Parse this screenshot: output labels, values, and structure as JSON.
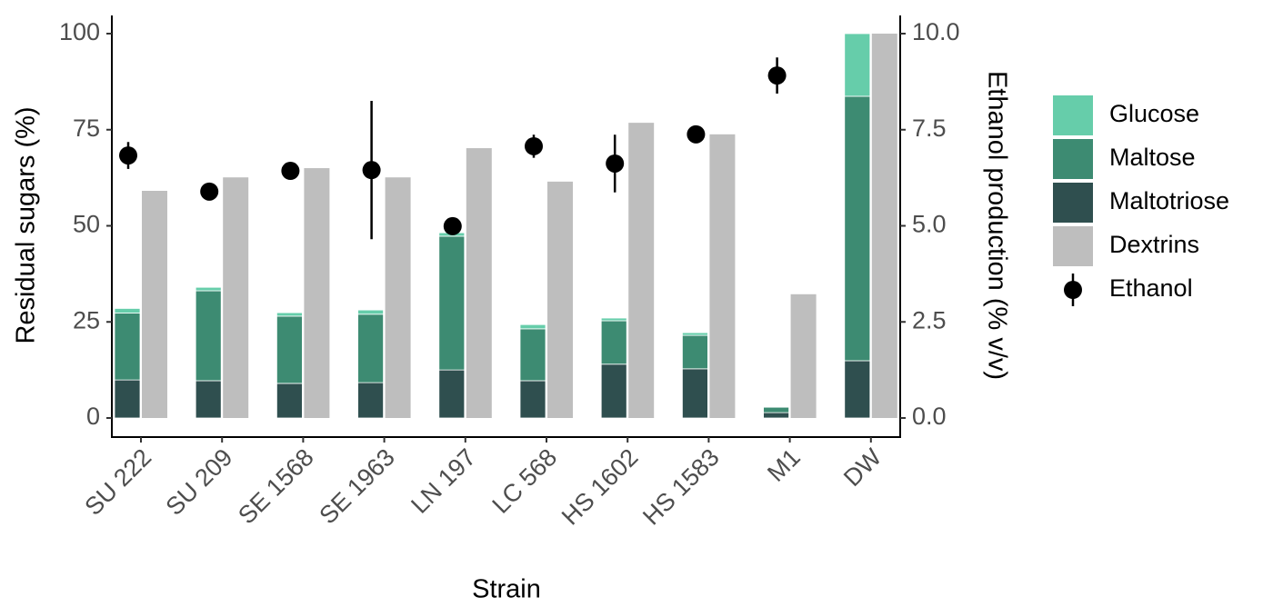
{
  "chart_data": {
    "type": "bar",
    "x_label": "Strain",
    "y_label": "Residual sugars (%)",
    "y2_label": "Ethanol production (% v/v)",
    "categories": [
      "SU 222",
      "SU 209",
      "SE 1568",
      "SE 1963",
      "LN 197",
      "LC 568",
      "HS 1602",
      "HS 1583",
      "M1",
      "DW"
    ],
    "ylim": [
      0,
      100
    ],
    "yticks": [
      0,
      25,
      50,
      75,
      100
    ],
    "y2lim": [
      0,
      10
    ],
    "y2ticks": [
      {
        "value": 0,
        "label": "0.0"
      },
      2.5,
      {
        "value": 5,
        "label": "5.0"
      },
      7.5,
      {
        "value": 10,
        "label": "10.0"
      }
    ],
    "series": [
      {
        "name": "Glucose",
        "color": "#66cdaa",
        "stack": "sugars",
        "values": [
          1.2,
          0.9,
          0.9,
          1.1,
          0.9,
          1.1,
          0.7,
          0.7,
          0,
          16.3
        ]
      },
      {
        "name": "Maltose",
        "color": "#3d8b72",
        "stack": "sugars",
        "values": [
          17.4,
          23.4,
          17.5,
          17.8,
          34.8,
          13.5,
          11.3,
          8.7,
          1.4,
          68.8
        ]
      },
      {
        "name": "Maltotriose",
        "color": "#2f4f4f",
        "stack": "sugars",
        "values": [
          9.9,
          9.7,
          9.0,
          9.2,
          12.5,
          9.7,
          14.0,
          12.8,
          1.4,
          14.9
        ]
      },
      {
        "name": "Dextrins",
        "color": "#bebebe",
        "values": [
          59.1,
          62.6,
          65.0,
          62.6,
          70.2,
          61.5,
          76.8,
          73.8,
          32.2,
          100
        ]
      },
      {
        "name": "Ethanol",
        "color": "#000000",
        "type": "point",
        "axis": "y2",
        "values": [
          6.83,
          5.89,
          6.43,
          6.45,
          4.99,
          7.07,
          6.62,
          7.38,
          8.91,
          null
        ],
        "errors": [
          0.35,
          0.1,
          0.1,
          1.8,
          0.1,
          0.3,
          0.75,
          0.1,
          0.47,
          null
        ]
      }
    ]
  }
}
